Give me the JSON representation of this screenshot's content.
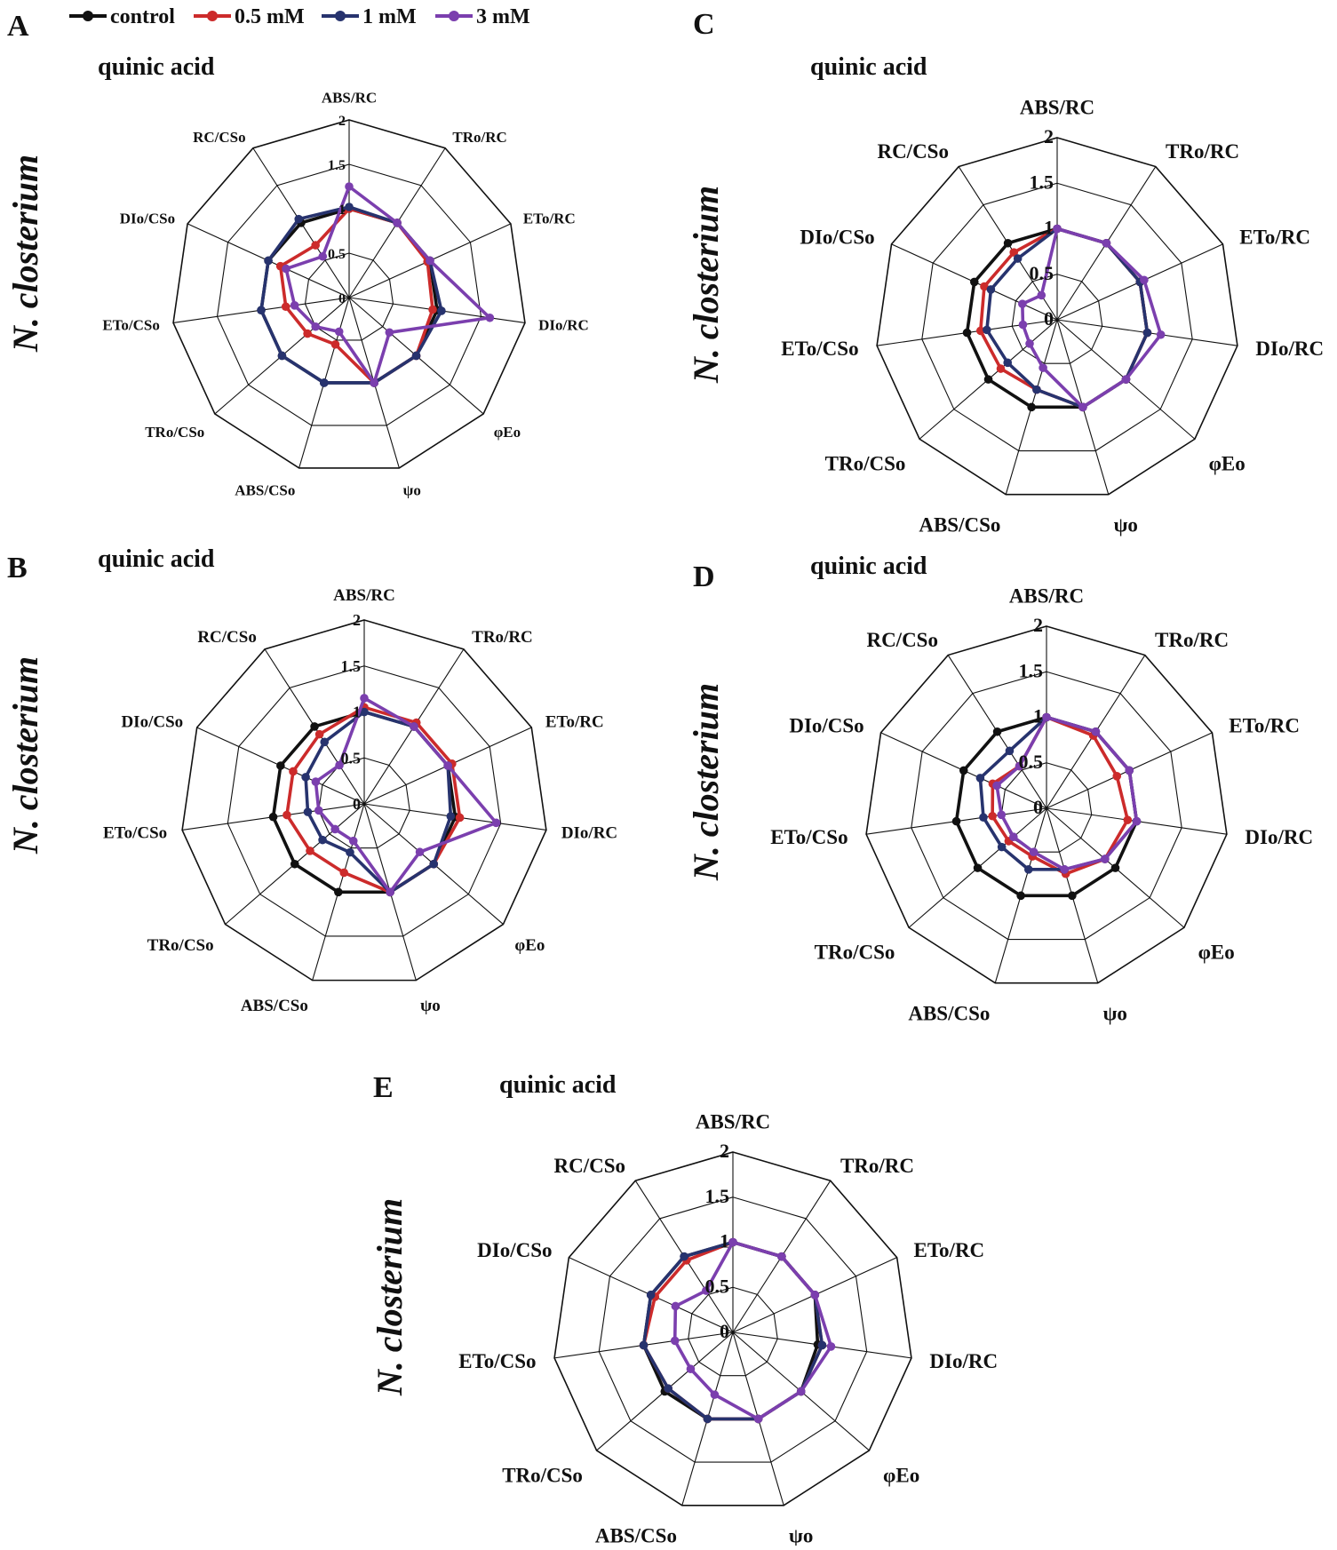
{
  "legend": {
    "series": [
      {
        "name": "control",
        "color": "#111111"
      },
      {
        "name": "0.5 mM",
        "color": "#cc2b2b"
      },
      {
        "name": "1 mM",
        "color": "#27336e"
      },
      {
        "name": "3 mM",
        "color": "#7b3fae"
      }
    ]
  },
  "chart_data": [
    {
      "panel": "A",
      "type": "radar",
      "title": "quinic acid",
      "ylabel": "N. closterium",
      "rlim": [
        0,
        2
      ],
      "ticks": [
        "0",
        "0.5",
        "1",
        "1.5",
        "2"
      ],
      "categories": [
        "ABS/RC",
        "TRo/RC",
        "ETo/RC",
        "DIo/RC",
        "φEo",
        "ψo",
        "ABS/CSo",
        "TRo/CSo",
        "ETo/CSo",
        "DIo/CSo",
        "RC/CSo"
      ],
      "series": [
        {
          "name": "control",
          "values": [
            1.0,
            1.0,
            1.0,
            1.0,
            1.0,
            1.0,
            1.0,
            1.0,
            1.0,
            1.0,
            1.0
          ]
        },
        {
          "name": "0.5 mM",
          "values": [
            1.0,
            1.0,
            0.97,
            0.95,
            1.0,
            1.0,
            0.55,
            0.62,
            0.72,
            0.85,
            0.7
          ]
        },
        {
          "name": "1 mM",
          "values": [
            1.02,
            1.0,
            1.0,
            1.05,
            1.0,
            1.0,
            1.0,
            1.0,
            1.0,
            1.0,
            1.05
          ]
        },
        {
          "name": "3 mM",
          "values": [
            1.25,
            1.0,
            1.0,
            1.6,
            0.6,
            1.0,
            0.4,
            0.5,
            0.62,
            0.78,
            0.55
          ]
        }
      ]
    },
    {
      "panel": "B",
      "type": "radar",
      "title": "quinic acid",
      "ylabel": "N. closterium",
      "rlim": [
        0,
        2
      ],
      "ticks": [
        "0",
        "0.5",
        "1",
        "1.5",
        "2"
      ],
      "categories": [
        "ABS/RC",
        "TRo/RC",
        "ETo/RC",
        "DIo/RC",
        "φEo",
        "ψo",
        "ABS/CSo",
        "TRo/CSo",
        "ETo/CSo",
        "DIo/CSo",
        "RC/CSo"
      ],
      "series": [
        {
          "name": "control",
          "values": [
            1.0,
            1.0,
            1.0,
            1.0,
            1.0,
            1.0,
            1.0,
            1.0,
            1.0,
            1.0,
            1.0
          ]
        },
        {
          "name": "0.5 mM",
          "values": [
            1.05,
            1.05,
            1.05,
            1.05,
            1.0,
            1.0,
            0.78,
            0.78,
            0.85,
            0.85,
            0.9
          ]
        },
        {
          "name": "1 mM",
          "values": [
            1.0,
            1.0,
            1.0,
            0.95,
            1.0,
            1.0,
            0.55,
            0.6,
            0.62,
            0.7,
            0.8
          ]
        },
        {
          "name": "3 mM",
          "values": [
            1.15,
            1.0,
            1.0,
            1.45,
            0.8,
            1.0,
            0.42,
            0.42,
            0.5,
            0.58,
            0.5
          ]
        }
      ]
    },
    {
      "panel": "C",
      "type": "radar",
      "title": "quinic acid",
      "ylabel": "N. closterium",
      "rlim": [
        0,
        2
      ],
      "ticks": [
        "0",
        "0.5",
        "1",
        "1.5",
        "2"
      ],
      "categories": [
        "ABS/RC",
        "TRo/RC",
        "ETo/RC",
        "DIo/RC",
        "φEo",
        "ψo",
        "ABS/CSo",
        "TRo/CSo",
        "ETo/CSo",
        "DIo/CSo",
        "RC/CSo"
      ],
      "series": [
        {
          "name": "control",
          "values": [
            1.0,
            1.0,
            1.0,
            1.0,
            1.0,
            1.0,
            1.0,
            1.0,
            1.0,
            1.0,
            1.0
          ]
        },
        {
          "name": "0.5 mM",
          "values": [
            1.0,
            1.0,
            1.0,
            1.0,
            1.0,
            1.0,
            0.8,
            0.82,
            0.85,
            0.88,
            0.88
          ]
        },
        {
          "name": "1 mM",
          "values": [
            1.0,
            1.0,
            1.0,
            1.0,
            1.0,
            1.0,
            0.8,
            0.72,
            0.78,
            0.8,
            0.8
          ]
        },
        {
          "name": "3 mM",
          "values": [
            1.0,
            1.0,
            1.05,
            1.15,
            1.0,
            1.0,
            0.55,
            0.4,
            0.38,
            0.42,
            0.32
          ]
        }
      ]
    },
    {
      "panel": "D",
      "type": "radar",
      "title": "quinic acid",
      "ylabel": "N. closterium",
      "rlim": [
        0,
        2
      ],
      "ticks": [
        "0",
        "0.5",
        "1",
        "1.5",
        "2"
      ],
      "categories": [
        "ABS/RC",
        "TRo/RC",
        "ETo/RC",
        "DIo/RC",
        "φEo",
        "ψo",
        "ABS/CSo",
        "TRo/CSo",
        "ETo/CSo",
        "DIo/CSo",
        "RC/CSo"
      ],
      "series": [
        {
          "name": "control",
          "values": [
            1.0,
            1.0,
            1.0,
            1.0,
            1.0,
            1.0,
            1.0,
            1.0,
            1.0,
            1.0,
            1.0
          ]
        },
        {
          "name": "0.5 mM",
          "values": [
            1.0,
            0.95,
            0.85,
            0.9,
            0.85,
            0.75,
            0.55,
            0.55,
            0.6,
            0.65,
            0.55
          ]
        },
        {
          "name": "1 mM",
          "values": [
            1.0,
            1.0,
            1.0,
            1.0,
            0.85,
            0.7,
            0.7,
            0.65,
            0.7,
            0.8,
            0.75
          ]
        },
        {
          "name": "3 mM",
          "values": [
            1.0,
            1.0,
            1.0,
            1.0,
            0.85,
            0.7,
            0.5,
            0.48,
            0.5,
            0.6,
            0.55
          ]
        }
      ]
    },
    {
      "panel": "E",
      "type": "radar",
      "title": "quinic acid",
      "ylabel": "N. closterium",
      "rlim": [
        0,
        2
      ],
      "ticks": [
        "0",
        "0.5",
        "1",
        "1.5",
        "2"
      ],
      "categories": [
        "ABS/RC",
        "TRo/RC",
        "ETo/RC",
        "DIo/RC",
        "φEo",
        "ψo",
        "ABS/CSo",
        "TRo/CSo",
        "ETo/CSo",
        "DIo/CSo",
        "RC/CSo"
      ],
      "series": [
        {
          "name": "control",
          "values": [
            1.0,
            1.0,
            1.0,
            0.95,
            1.0,
            1.0,
            1.0,
            1.0,
            1.0,
            1.0,
            1.0
          ]
        },
        {
          "name": "0.5 mM",
          "values": [
            1.0,
            1.0,
            1.0,
            1.0,
            1.0,
            1.0,
            1.0,
            0.95,
            1.0,
            0.95,
            0.95
          ]
        },
        {
          "name": "1 mM",
          "values": [
            1.0,
            1.0,
            1.0,
            1.0,
            1.0,
            1.0,
            1.0,
            0.95,
            1.0,
            1.0,
            1.0
          ]
        },
        {
          "name": "3 mM",
          "values": [
            1.0,
            1.0,
            1.0,
            1.1,
            1.0,
            1.0,
            0.72,
            0.62,
            0.65,
            0.7,
            0.55
          ]
        }
      ]
    }
  ]
}
